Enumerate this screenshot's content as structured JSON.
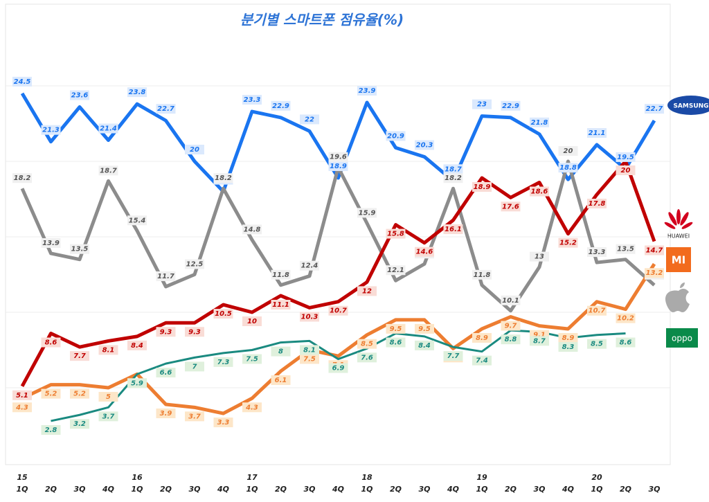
{
  "chart_data": {
    "type": "line",
    "title": "분기별 스마트폰 점유율(%)",
    "categories": [
      "1Q",
      "2Q",
      "3Q",
      "4Q",
      "1Q",
      "2Q",
      "3Q",
      "4Q",
      "1Q",
      "2Q",
      "3Q",
      "4Q",
      "1Q",
      "2Q",
      "3Q",
      "4Q",
      "1Q",
      "2Q",
      "3Q",
      "4Q",
      "1Q",
      "2Q",
      "3Q"
    ],
    "year_labels": [
      "15",
      null,
      null,
      null,
      "16",
      null,
      null,
      null,
      "17",
      null,
      null,
      null,
      "18",
      null,
      null,
      null,
      "19",
      null,
      null,
      null,
      "20",
      null,
      null
    ],
    "ylim": [
      0,
      30
    ],
    "gridlines": [
      5,
      10,
      15,
      20,
      25
    ],
    "grid": true,
    "series": [
      {
        "name": "SAMSUNG",
        "color": "#1a75f0",
        "label_fill": "#dbe9fd",
        "values": [
          24.5,
          21.3,
          23.6,
          21.4,
          23.8,
          22.7,
          20.0,
          18.0,
          23.3,
          22.9,
          22.0,
          18.9,
          23.9,
          20.9,
          20.3,
          18.7,
          23.0,
          22.9,
          21.8,
          18.8,
          21.1,
          19.5,
          22.7
        ]
      },
      {
        "color": "#8c8c8c",
        "label_fill": "#f0f0f0",
        "values": [
          18.2,
          13.9,
          13.5,
          18.7,
          15.4,
          11.7,
          12.5,
          18.2,
          14.8,
          11.8,
          12.4,
          19.6,
          15.9,
          12.1,
          13.2,
          18.2,
          11.8,
          10.1,
          13.0,
          20.0,
          13.3,
          13.5,
          11.8
        ]
      },
      {
        "name": "HUAWEI",
        "color": "#c00000",
        "label_fill": "#f9dcd6",
        "values": [
          5.1,
          8.6,
          7.7,
          8.1,
          8.4,
          9.3,
          9.3,
          10.5,
          10.0,
          11.1,
          10.3,
          10.7,
          12.0,
          15.8,
          14.6,
          16.1,
          18.9,
          17.6,
          18.6,
          15.2,
          17.8,
          20.0,
          14.7
        ]
      },
      {
        "name": "MI",
        "color": "#ed7d31",
        "label_fill": "#fde6c8",
        "values": [
          4.3,
          5.2,
          5.2,
          5.0,
          5.9,
          3.9,
          3.7,
          3.3,
          4.3,
          6.1,
          7.5,
          7.1,
          8.5,
          9.5,
          9.5,
          7.6,
          8.9,
          9.7,
          9.1,
          8.9,
          10.7,
          10.2,
          13.2
        ]
      },
      {
        "name": "oppo",
        "color": "#1a8a80",
        "label_fill": "#dff0dc",
        "values": [
          null,
          2.8,
          3.2,
          3.7,
          5.9,
          6.6,
          7.0,
          7.3,
          7.5,
          8.0,
          8.1,
          6.9,
          7.6,
          8.6,
          8.4,
          7.7,
          7.4,
          8.8,
          8.7,
          8.3,
          8.5,
          8.6,
          null
        ]
      }
    ]
  }
}
